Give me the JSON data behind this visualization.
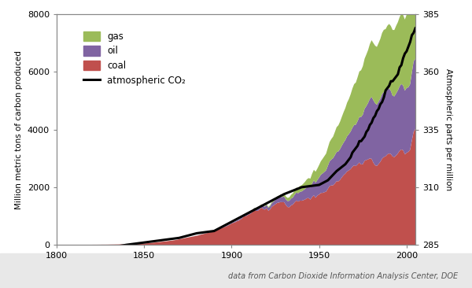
{
  "title": "",
  "ylabel_left": "Million metric tons of carbon produced",
  "ylabel_right": "Atmospheric parts per million",
  "xlabel": "",
  "footnote": "data from Carbon Dioxide Information Analysis Center, DOE",
  "ylim_left": [
    0,
    8000
  ],
  "ylim_right": [
    285,
    385
  ],
  "xlim": [
    1800,
    2005
  ],
  "xticks": [
    1800,
    1850,
    1900,
    1950,
    2000
  ],
  "yticks_left": [
    0,
    2000,
    4000,
    6000,
    8000
  ],
  "yticks_right": [
    285,
    310,
    335,
    360,
    385
  ],
  "coal_color": "#c0504d",
  "oil_color": "#8064a2",
  "gas_color": "#9bbb59",
  "co2_color": "#000000",
  "background_color": "#ffffff",
  "footnote_bg": "#e8e8e8",
  "years_emission": [
    1751,
    1752,
    1753,
    1754,
    1755,
    1756,
    1757,
    1758,
    1759,
    1760,
    1761,
    1762,
    1763,
    1764,
    1765,
    1766,
    1767,
    1768,
    1769,
    1770,
    1771,
    1772,
    1773,
    1774,
    1775,
    1776,
    1777,
    1778,
    1779,
    1780,
    1781,
    1782,
    1783,
    1784,
    1785,
    1786,
    1787,
    1788,
    1789,
    1790,
    1791,
    1792,
    1793,
    1794,
    1795,
    1796,
    1797,
    1798,
    1799,
    1800,
    1801,
    1802,
    1803,
    1804,
    1805,
    1806,
    1807,
    1808,
    1809,
    1810,
    1811,
    1812,
    1813,
    1814,
    1815,
    1816,
    1817,
    1818,
    1819,
    1820,
    1821,
    1822,
    1823,
    1824,
    1825,
    1826,
    1827,
    1828,
    1829,
    1830,
    1831,
    1832,
    1833,
    1834,
    1835,
    1836,
    1837,
    1838,
    1839,
    1840,
    1841,
    1842,
    1843,
    1844,
    1845,
    1846,
    1847,
    1848,
    1849,
    1850,
    1851,
    1852,
    1853,
    1854,
    1855,
    1856,
    1857,
    1858,
    1859,
    1860,
    1861,
    1862,
    1863,
    1864,
    1865,
    1866,
    1867,
    1868,
    1869,
    1870,
    1871,
    1872,
    1873,
    1874,
    1875,
    1876,
    1877,
    1878,
    1879,
    1880,
    1881,
    1882,
    1883,
    1884,
    1885,
    1886,
    1887,
    1888,
    1889,
    1890,
    1891,
    1892,
    1893,
    1894,
    1895,
    1896,
    1897,
    1898,
    1899,
    1900,
    1901,
    1902,
    1903,
    1904,
    1905,
    1906,
    1907,
    1908,
    1909,
    1910,
    1911,
    1912,
    1913,
    1914,
    1915,
    1916,
    1917,
    1918,
    1919,
    1920,
    1921,
    1922,
    1923,
    1924,
    1925,
    1926,
    1927,
    1928,
    1929,
    1930,
    1931,
    1932,
    1933,
    1934,
    1935,
    1936,
    1937,
    1938,
    1939,
    1940,
    1941,
    1942,
    1943,
    1944,
    1945,
    1946,
    1947,
    1948,
    1949,
    1950,
    1951,
    1952,
    1953,
    1954,
    1955,
    1956,
    1957,
    1958,
    1959,
    1960,
    1961,
    1962,
    1963,
    1964,
    1965,
    1966,
    1967,
    1968,
    1969,
    1970,
    1971,
    1972,
    1973,
    1974,
    1975,
    1976,
    1977,
    1978,
    1979,
    1980,
    1981,
    1982,
    1983,
    1984,
    1985,
    1986,
    1987,
    1988,
    1989,
    1990,
    1991,
    1992,
    1993,
    1994,
    1995,
    1996,
    1997,
    1998,
    1999,
    2000,
    2001,
    2002,
    2003,
    2004,
    2005,
    2006,
    2007,
    2008
  ],
  "coal": [
    3,
    3,
    3,
    3,
    3,
    3,
    3,
    3,
    3,
    3,
    3,
    3,
    3,
    3,
    3,
    3,
    3,
    3,
    3,
    3,
    3,
    3,
    3,
    3,
    3,
    3,
    3,
    3,
    3,
    3,
    3,
    3,
    3,
    3,
    3,
    3,
    3,
    3,
    3,
    3,
    3,
    3,
    3,
    3,
    3,
    3,
    3,
    3,
    3,
    3,
    3,
    3,
    3,
    3,
    3,
    3,
    3,
    3,
    3,
    3,
    3,
    3,
    3,
    3,
    3,
    3,
    3,
    3,
    3,
    3,
    4,
    4,
    4,
    5,
    5,
    6,
    6,
    6,
    7,
    8,
    9,
    10,
    11,
    12,
    13,
    15,
    17,
    18,
    19,
    20,
    22,
    23,
    24,
    27,
    30,
    33,
    36,
    39,
    42,
    45,
    50,
    56,
    60,
    65,
    72,
    78,
    84,
    90,
    97,
    104,
    111,
    117,
    124,
    132,
    140,
    148,
    156,
    165,
    178,
    192,
    206,
    214,
    228,
    240,
    253,
    265,
    277,
    289,
    302,
    315,
    328,
    345,
    363,
    375,
    391,
    407,
    422,
    442,
    463,
    487,
    508,
    528,
    548,
    570,
    593,
    617,
    643,
    672,
    703,
    740,
    762,
    783,
    817,
    837,
    876,
    919,
    991,
    988,
    1027,
    1059,
    1091,
    1139,
    1199,
    1177,
    1182,
    1236,
    1290,
    1245,
    1220,
    1274,
    1181,
    1228,
    1323,
    1365,
    1409,
    1453,
    1467,
    1484,
    1479,
    1480,
    1381,
    1311,
    1305,
    1370,
    1397,
    1475,
    1535,
    1501,
    1534,
    1530,
    1549,
    1574,
    1617,
    1622,
    1569,
    1659,
    1718,
    1634,
    1712,
    1748,
    1800,
    1803,
    1826,
    1847,
    1943,
    2043,
    2061,
    2068,
    2131,
    2210,
    2203,
    2258,
    2344,
    2420,
    2473,
    2549,
    2583,
    2628,
    2708,
    2761,
    2731,
    2794,
    2858,
    2786,
    2802,
    2918,
    2944,
    2966,
    3003,
    2984,
    2851,
    2761,
    2738,
    2809,
    2882,
    2993,
    3049,
    3074,
    3140,
    3171,
    3152,
    3066,
    3049,
    3102,
    3173,
    3264,
    3310,
    3282,
    3140,
    3193,
    3230,
    3299,
    3619,
    3925,
    4028,
    4180,
    4310,
    4378
  ],
  "oil": [
    0,
    0,
    0,
    0,
    0,
    0,
    0,
    0,
    0,
    0,
    0,
    0,
    0,
    0,
    0,
    0,
    0,
    0,
    0,
    0,
    0,
    0,
    0,
    0,
    0,
    0,
    0,
    0,
    0,
    0,
    0,
    0,
    0,
    0,
    0,
    0,
    0,
    0,
    0,
    0,
    0,
    0,
    0,
    0,
    0,
    0,
    0,
    0,
    0,
    0,
    0,
    0,
    0,
    0,
    0,
    0,
    0,
    0,
    0,
    0,
    0,
    0,
    0,
    0,
    0,
    0,
    0,
    0,
    0,
    0,
    0,
    0,
    0,
    0,
    0,
    0,
    0,
    0,
    0,
    0,
    0,
    0,
    0,
    0,
    0,
    0,
    0,
    0,
    0,
    0,
    0,
    0,
    0,
    0,
    0,
    0,
    0,
    0,
    0,
    0,
    0,
    0,
    0,
    0,
    0,
    0,
    0,
    0,
    0,
    0,
    0,
    0,
    0,
    0,
    0,
    0,
    0,
    0,
    0,
    1,
    1,
    1,
    1,
    1,
    1,
    1,
    1,
    2,
    2,
    2,
    2,
    2,
    3,
    3,
    4,
    4,
    5,
    5,
    6,
    7,
    7,
    8,
    9,
    10,
    12,
    13,
    15,
    17,
    19,
    21,
    24,
    27,
    31,
    35,
    39,
    44,
    50,
    52,
    57,
    62,
    67,
    73,
    80,
    80,
    86,
    91,
    98,
    100,
    105,
    113,
    101,
    109,
    126,
    138,
    148,
    159,
    164,
    178,
    181,
    197,
    196,
    207,
    225,
    235,
    245,
    261,
    278,
    288,
    307,
    322,
    344,
    369,
    395,
    415,
    421,
    470,
    519,
    524,
    534,
    587,
    634,
    676,
    705,
    739,
    800,
    857,
    900,
    940,
    980,
    1010,
    1040,
    1070,
    1100,
    1130,
    1169,
    1221,
    1261,
    1303,
    1352,
    1397,
    1441,
    1502,
    1582,
    1651,
    1720,
    1806,
    1872,
    1960,
    2064,
    2152,
    2169,
    2153,
    2126,
    2165,
    2200,
    2245,
    2261,
    2237,
    2261,
    2257,
    2188,
    2109,
    2106,
    2153,
    2189,
    2238,
    2273,
    2247,
    2212,
    2255,
    2238,
    2276,
    2361,
    2444,
    2436,
    2424,
    2421,
    2466
  ],
  "gas": [
    0,
    0,
    0,
    0,
    0,
    0,
    0,
    0,
    0,
    0,
    0,
    0,
    0,
    0,
    0,
    0,
    0,
    0,
    0,
    0,
    0,
    0,
    0,
    0,
    0,
    0,
    0,
    0,
    0,
    0,
    0,
    0,
    0,
    0,
    0,
    0,
    0,
    0,
    0,
    0,
    0,
    0,
    0,
    0,
    0,
    0,
    0,
    0,
    0,
    0,
    0,
    0,
    0,
    0,
    0,
    0,
    0,
    0,
    0,
    0,
    0,
    0,
    0,
    0,
    0,
    0,
    0,
    0,
    0,
    0,
    0,
    0,
    0,
    0,
    0,
    0,
    0,
    0,
    0,
    0,
    0,
    0,
    0,
    0,
    0,
    0,
    0,
    0,
    0,
    0,
    0,
    0,
    0,
    0,
    0,
    0,
    0,
    0,
    0,
    0,
    0,
    0,
    0,
    0,
    0,
    0,
    0,
    0,
    0,
    0,
    0,
    0,
    0,
    0,
    0,
    0,
    0,
    0,
    0,
    0,
    0,
    0,
    0,
    0,
    0,
    0,
    0,
    0,
    0,
    0,
    0,
    0,
    0,
    0,
    0,
    0,
    0,
    0,
    0,
    0,
    0,
    0,
    0,
    0,
    0,
    0,
    0,
    0,
    0,
    0,
    0,
    0,
    0,
    0,
    1,
    1,
    2,
    2,
    3,
    4,
    5,
    7,
    9,
    10,
    13,
    16,
    19,
    22,
    27,
    32,
    32,
    37,
    44,
    51,
    59,
    66,
    73,
    82,
    89,
    100,
    103,
    110,
    121,
    132,
    144,
    162,
    175,
    181,
    196,
    214,
    231,
    249,
    262,
    280,
    307,
    340,
    367,
    381,
    401,
    436,
    468,
    508,
    546,
    581,
    629,
    671,
    714,
    749,
    806,
    865,
    905,
    952,
    1003,
    1057,
    1108,
    1168,
    1216,
    1293,
    1362,
    1421,
    1464,
    1524,
    1580,
    1625,
    1680,
    1739,
    1794,
    1839,
    1904,
    1968,
    1986,
    2000,
    2007,
    2033,
    2072,
    2120,
    2157,
    2178,
    2205,
    2242,
    2259,
    2284,
    2304,
    2348,
    2367,
    2402,
    2447,
    2454,
    2470,
    2540,
    2548,
    2576,
    2697,
    2776,
    2786,
    2818,
    2797,
    2836
  ],
  "years_co2": [
    1832,
    1840,
    1850,
    1860,
    1870,
    1880,
    1890,
    1900,
    1910,
    1920,
    1930,
    1940,
    1950,
    1955,
    1960,
    1965,
    1966,
    1967,
    1968,
    1969,
    1970,
    1971,
    1972,
    1973,
    1974,
    1975,
    1976,
    1977,
    1978,
    1979,
    1980,
    1981,
    1982,
    1983,
    1984,
    1985,
    1986,
    1987,
    1988,
    1989,
    1990,
    1991,
    1992,
    1993,
    1994,
    1995,
    1996,
    1997,
    1998,
    1999,
    2000,
    2001,
    2002,
    2003,
    2004,
    2005
  ],
  "co2_ppm": [
    284,
    285,
    286,
    287,
    288,
    290,
    291,
    295,
    299,
    303,
    307,
    310,
    311,
    313,
    317,
    320,
    321,
    322,
    323,
    325,
    326,
    327,
    328,
    330,
    330,
    331,
    332,
    334,
    335,
    337,
    338,
    340,
    341,
    343,
    344,
    346,
    347,
    349,
    352,
    353,
    354,
    356,
    356,
    357,
    358,
    359,
    362,
    363,
    366,
    368,
    369,
    371,
    373,
    376,
    377,
    379
  ]
}
